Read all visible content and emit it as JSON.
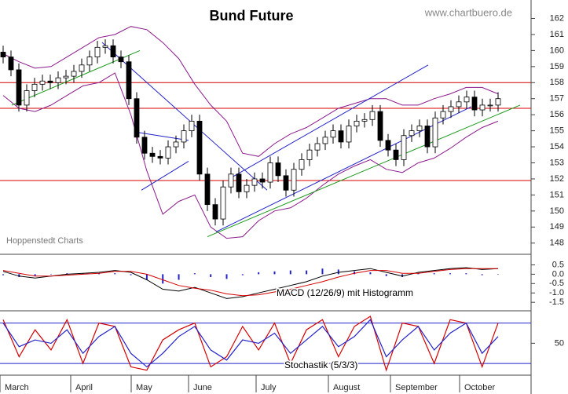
{
  "x_axis": {
    "xlim": [
      -0.4,
      67.2
    ],
    "months": [
      {
        "label": "March",
        "start": -0.4
      },
      {
        "label": "April",
        "start": 8.6
      },
      {
        "label": "May",
        "start": 16.3
      },
      {
        "label": "June",
        "start": 23.6
      },
      {
        "label": "July",
        "start": 32.2
      },
      {
        "label": "August",
        "start": 41.4
      },
      {
        "label": "September",
        "start": 49.3
      },
      {
        "label": "October",
        "start": 58.1
      }
    ]
  },
  "chart_data": [
    {
      "type": "candlestick",
      "title": "Bund Future",
      "source": "www.chartbuero.de",
      "credit": "Hoppenstedt Charts",
      "open": [
        159.9,
        159.6,
        158.8,
        156.6,
        157.5,
        157.9,
        158.1,
        158.0,
        158.3,
        158.4,
        158.7,
        159.1,
        159.6,
        160.2,
        160.3,
        159.6,
        159.3,
        157.0,
        154.6,
        153.6,
        153.4,
        153.3,
        154.0,
        154.3,
        155.0,
        155.6,
        152.3,
        150.4,
        149.5,
        151.5,
        152.3,
        151.2,
        151.6,
        152.0,
        151.8,
        153.0,
        152.2,
        151.3,
        152.6,
        153.2,
        153.8,
        154.2,
        154.6,
        155.0,
        154.3,
        155.3,
        155.6,
        155.7,
        156.2,
        154.4,
        153.8,
        153.2,
        154.7,
        155.0,
        155.3,
        154.0,
        155.8,
        156.2,
        156.5,
        156.8,
        157.1,
        156.3,
        156.6,
        156.6
      ],
      "high": [
        160.3,
        160.0,
        159.2,
        157.9,
        158.3,
        158.5,
        158.5,
        158.7,
        158.8,
        159.1,
        159.5,
        160.0,
        160.6,
        160.7,
        160.7,
        160.0,
        159.7,
        157.4,
        155.0,
        154.0,
        153.8,
        154.4,
        154.7,
        155.4,
        156.0,
        156.0,
        152.7,
        150.8,
        151.9,
        152.7,
        152.7,
        152.0,
        152.4,
        152.4,
        153.4,
        153.4,
        152.6,
        153.0,
        153.6,
        154.2,
        154.6,
        155.0,
        155.4,
        155.4,
        155.7,
        156.0,
        156.1,
        156.6,
        156.6,
        154.8,
        154.2,
        155.1,
        155.4,
        155.7,
        155.7,
        156.2,
        156.6,
        156.9,
        157.2,
        157.5,
        157.5,
        157.0,
        157.0,
        157.4
      ],
      "low": [
        159.2,
        158.4,
        156.2,
        156.2,
        157.1,
        157.5,
        157.6,
        157.6,
        157.9,
        158.0,
        158.3,
        158.7,
        159.2,
        159.8,
        159.2,
        158.9,
        156.6,
        154.2,
        153.2,
        153.0,
        152.9,
        152.9,
        153.6,
        153.9,
        154.6,
        151.9,
        150.0,
        149.1,
        149.1,
        151.1,
        150.8,
        150.8,
        151.2,
        151.4,
        151.4,
        151.8,
        150.9,
        150.9,
        152.2,
        152.8,
        153.4,
        153.8,
        154.2,
        153.9,
        153.9,
        154.9,
        155.2,
        155.3,
        154.0,
        153.4,
        152.8,
        152.8,
        154.3,
        154.6,
        153.6,
        153.6,
        155.4,
        155.8,
        156.1,
        156.4,
        155.9,
        155.9,
        156.2,
        156.2
      ],
      "close": [
        159.6,
        158.8,
        156.6,
        157.5,
        157.9,
        158.1,
        158.0,
        158.3,
        158.4,
        158.7,
        159.1,
        159.6,
        160.2,
        160.3,
        159.6,
        159.3,
        157.0,
        154.6,
        153.6,
        153.4,
        153.3,
        154.0,
        154.3,
        155.0,
        155.6,
        152.3,
        150.4,
        149.5,
        151.5,
        152.3,
        151.2,
        151.6,
        152.0,
        151.8,
        153.0,
        152.2,
        151.3,
        152.6,
        153.2,
        153.8,
        154.2,
        154.6,
        155.0,
        154.3,
        155.3,
        155.6,
        155.7,
        156.2,
        154.4,
        153.8,
        153.2,
        154.7,
        155.0,
        155.3,
        154.0,
        155.8,
        156.2,
        156.5,
        156.8,
        157.1,
        156.3,
        156.6,
        156.6,
        157.0
      ],
      "bands": [
        {
          "color": "#8b1a8b",
          "values": [
            159.8,
            159.3,
            158.9,
            159.0,
            159.6,
            160.2,
            160.8,
            161.0,
            161.5,
            161.3,
            160.5,
            159.5,
            157.9,
            156.6,
            155.6,
            153.6,
            153.4,
            154.2,
            154.8,
            155.2,
            155.8,
            156.4,
            156.7,
            157.0,
            157.0,
            156.6,
            156.6,
            157.0,
            157.3,
            157.7,
            157.7,
            157.3
          ]
        },
        {
          "color": "#8b1a8b",
          "values": [
            157.2,
            156.4,
            156.2,
            156.6,
            157.2,
            157.8,
            158.0,
            158.6,
            156.0,
            152.5,
            149.8,
            150.6,
            151.0,
            149.0,
            148.3,
            148.4,
            149.4,
            150.0,
            150.2,
            150.8,
            151.6,
            152.3,
            152.8,
            153.2,
            152.6,
            152.4,
            153.0,
            153.3,
            153.9,
            154.6,
            155.2,
            155.6
          ]
        }
      ],
      "levels": [
        158.0,
        156.4,
        151.9
      ],
      "level_color": "#d40000",
      "trendlines": [
        {
          "color": "#1a9a1a",
          "x": [
            1.1,
            17.4
          ],
          "y": [
            156.6,
            160.0
          ]
        },
        {
          "color": "#2222cc",
          "x": [
            12.6,
            33.6
          ],
          "y": [
            160.5,
            151.3
          ]
        },
        {
          "color": "#2222cc",
          "x": [
            17.1,
            23.6
          ],
          "y": [
            154.9,
            154.4
          ]
        },
        {
          "color": "#2222cc",
          "x": [
            17.6,
            23.6
          ],
          "y": [
            151.3,
            153.1
          ]
        },
        {
          "color": "#1a9a1a",
          "x": [
            26.0,
            65.8
          ],
          "y": [
            148.4,
            156.6
          ]
        },
        {
          "color": "#2222cc",
          "x": [
            29.1,
            54.1
          ],
          "y": [
            152.1,
            159.1
          ]
        },
        {
          "color": "#2222cc",
          "x": [
            27.1,
            59.6
          ],
          "y": [
            148.7,
            156.5
          ]
        }
      ],
      "ylim": [
        147.4,
        163.15
      ],
      "yticks": [
        148,
        149,
        150,
        151,
        152,
        153,
        154,
        155,
        156,
        157,
        158,
        159,
        160,
        161,
        162
      ]
    },
    {
      "type": "macd",
      "title": "MACD (12/26/9) mit Histogramm",
      "series": [
        {
          "color": "#000000",
          "values": [
            0.15,
            -0.1,
            -0.2,
            -0.1,
            0.0,
            0.05,
            0.1,
            0.2,
            0.1,
            -0.3,
            -0.8,
            -0.9,
            -0.7,
            -1.0,
            -1.3,
            -1.2,
            -1.0,
            -0.8,
            -0.6,
            -0.4,
            -0.1,
            0.1,
            0.2,
            0.3,
            0.1,
            -0.1,
            0.1,
            0.2,
            0.3,
            0.35,
            0.25,
            0.3
          ]
        },
        {
          "color": "#d40000",
          "values": [
            0.2,
            0.05,
            -0.1,
            -0.1,
            -0.05,
            0.0,
            0.05,
            0.15,
            0.15,
            0.0,
            -0.3,
            -0.6,
            -0.75,
            -0.85,
            -1.05,
            -1.15,
            -1.1,
            -0.95,
            -0.8,
            -0.6,
            -0.4,
            -0.15,
            0.05,
            0.2,
            0.2,
            0.05,
            0.05,
            0.15,
            0.25,
            0.3,
            0.3,
            0.3
          ]
        }
      ],
      "histogram": {
        "color": "#2222cc",
        "values": [
          -0.05,
          -0.15,
          -0.1,
          0,
          0.05,
          0.05,
          0.05,
          0.05,
          -0.05,
          -0.3,
          -0.5,
          -0.3,
          0.05,
          -0.15,
          -0.25,
          -0.05,
          0.1,
          0.15,
          0.2,
          0.2,
          0.3,
          0.25,
          0.15,
          0.1,
          -0.1,
          -0.15,
          0.05,
          0.05,
          0.05,
          0.05,
          -0.05,
          0
        ]
      },
      "ylim": [
        -1.87,
        0.98
      ],
      "yticks": [
        0.5,
        {
          "value": 0,
          "label": "0.0"
        },
        -0.5,
        {
          "value": -1,
          "label": "-1.0"
        },
        -1.5
      ]
    },
    {
      "type": "line",
      "title": "Stochastik (5/3/3)",
      "series": [
        {
          "color": "#d40000",
          "values": [
            85,
            30,
            70,
            40,
            85,
            20,
            80,
            75,
            15,
            10,
            55,
            70,
            80,
            15,
            30,
            75,
            40,
            80,
            20,
            70,
            85,
            30,
            75,
            90,
            10,
            80,
            75,
            20,
            85,
            80,
            15,
            80
          ]
        },
        {
          "color": "#2222cc",
          "values": [
            80,
            45,
            55,
            50,
            70,
            35,
            60,
            75,
            35,
            15,
            35,
            60,
            75,
            40,
            25,
            55,
            50,
            65,
            35,
            55,
            75,
            45,
            60,
            85,
            30,
            55,
            75,
            40,
            65,
            80,
            35,
            60
          ]
        }
      ],
      "levels": [
        20,
        80
      ],
      "level_color": "#2222cc",
      "ylim": [
        5,
        97
      ],
      "yticks": [
        50
      ]
    }
  ]
}
